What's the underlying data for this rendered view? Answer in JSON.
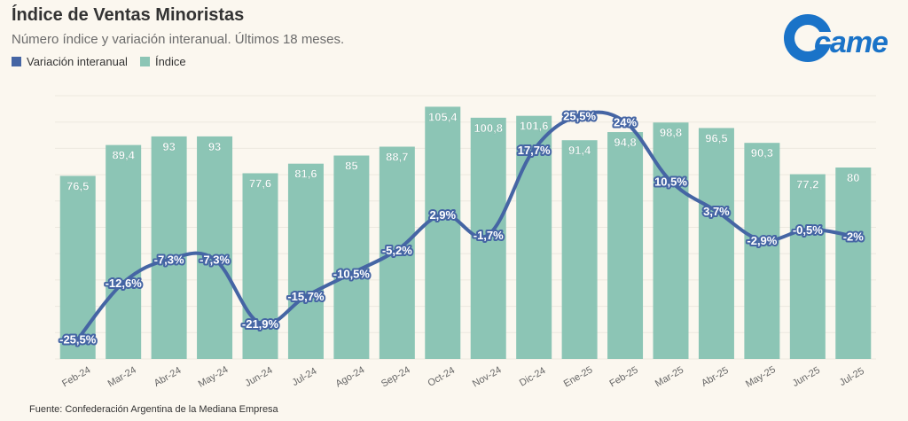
{
  "header": {
    "title": "Índice de Ventas Minoristas",
    "subtitle": "Número índice y variación interanual. Últimos 18 meses."
  },
  "legend": {
    "line_label": "Variación interanual",
    "bar_label": "Índice"
  },
  "logo": {
    "text": "came",
    "color": "#1a73c8"
  },
  "footer": {
    "source": "Fuente: Confederación Argentina de la Mediana Empresa"
  },
  "colors": {
    "bar": "#8cc5b5",
    "line": "#4565a4",
    "background": "#fbf7ef"
  },
  "chart_data": {
    "type": "bar",
    "title": "Índice de Ventas Minoristas",
    "categories": [
      "Feb-24",
      "Mar-24",
      "Abr-24",
      "May-24",
      "Jun-24",
      "Jul-24",
      "Ago-24",
      "Sep-24",
      "Oct-24",
      "Nov-24",
      "Dic-24",
      "Ene-25",
      "Feb-25",
      "Mar-25",
      "Abr-25",
      "May-25",
      "Jun-25",
      "Jul-25"
    ],
    "series": [
      {
        "name": "Índice",
        "type": "bar",
        "values": [
          76.5,
          89.4,
          93,
          93,
          77.6,
          81.6,
          85,
          88.7,
          105.4,
          100.8,
          101.6,
          91.4,
          94.8,
          98.8,
          96.5,
          90.3,
          77.2,
          80
        ],
        "labels": [
          "76,5",
          "89,4",
          "93",
          "93",
          "77,6",
          "81,6",
          "85",
          "88,7",
          "105,4",
          "100,8",
          "101,6",
          "91,4",
          "94,8",
          "98,8",
          "96,5",
          "90,3",
          "77,2",
          "80"
        ]
      },
      {
        "name": "Variación interanual",
        "type": "line",
        "values": [
          -25.5,
          -12.6,
          -7.3,
          -7.3,
          -21.9,
          -15.7,
          -10.5,
          -5.2,
          2.9,
          -1.7,
          17.7,
          25.5,
          24,
          10.5,
          3.7,
          -2.9,
          -0.5,
          -2
        ],
        "labels": [
          "-25,5%",
          "-12,6%",
          "-7,3%",
          "-7,3%",
          "-21,9%",
          "-15,7%",
          "-10,5%",
          "-5,2%",
          "2,9%",
          "-1,7%",
          "17,7%",
          "25,5%",
          "24%",
          "10,5%",
          "3,7%",
          "-2,9%",
          "-0,5%",
          "-2%"
        ]
      }
    ],
    "bar_axis_range": [
      0,
      110
    ],
    "line_axis_range": [
      -30,
      30
    ],
    "grid": true
  }
}
